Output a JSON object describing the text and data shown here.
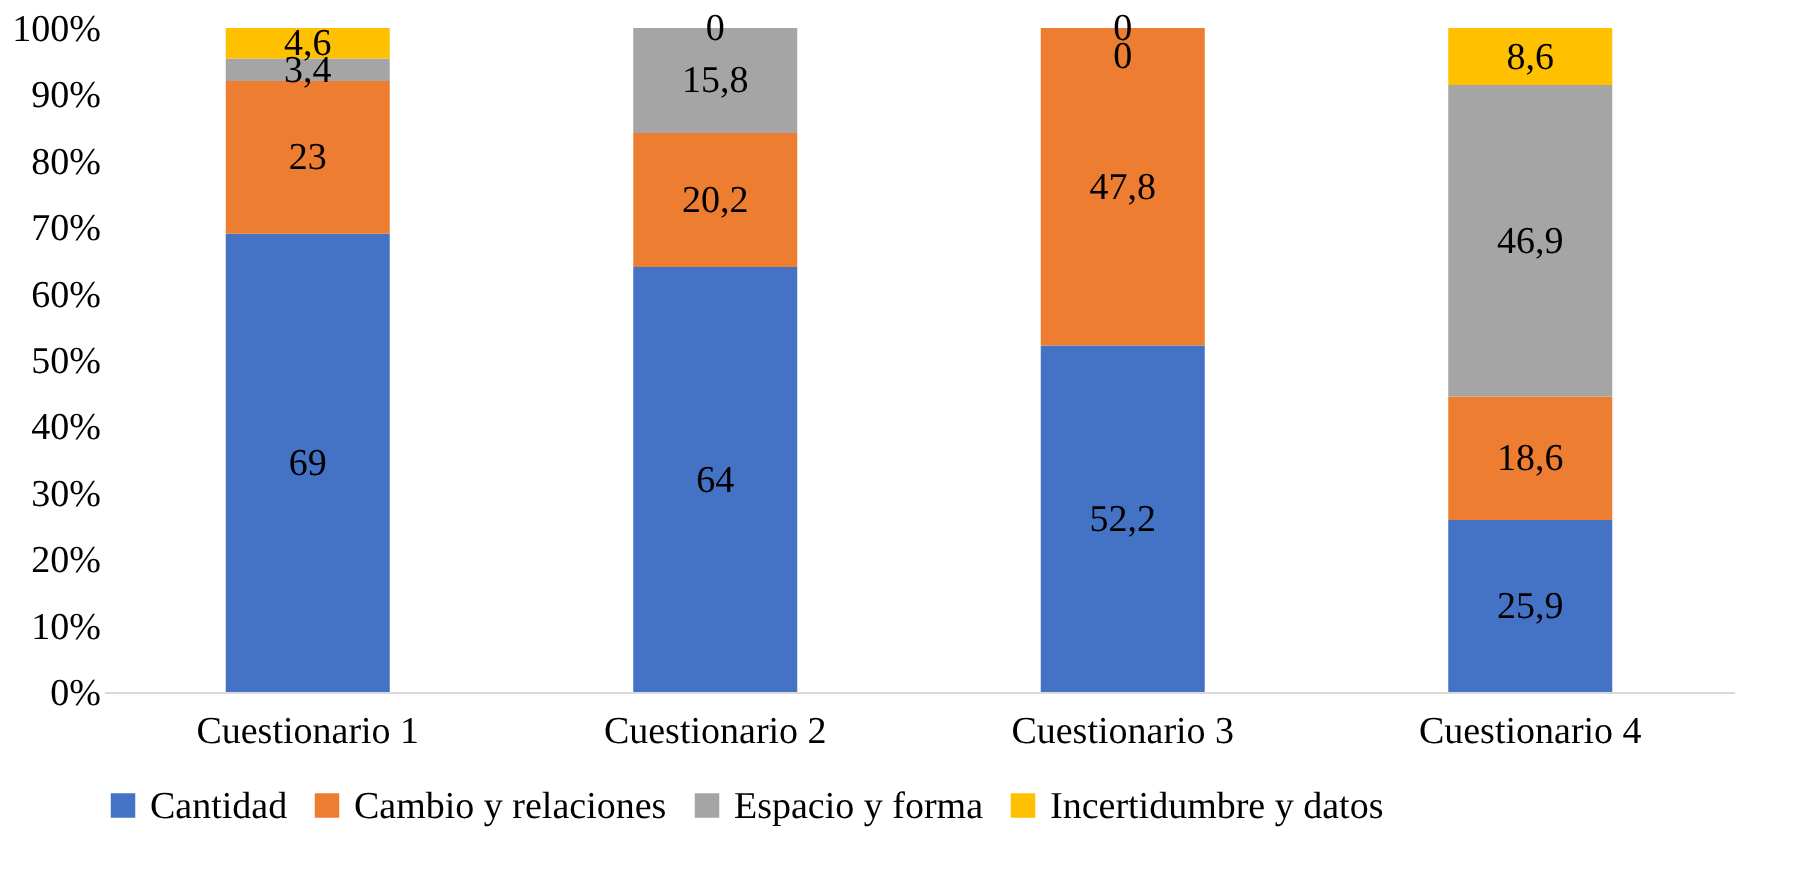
{
  "chart_data": {
    "type": "bar",
    "stacked": true,
    "categories": [
      "Cuestionario 1",
      "Cuestionario 2",
      "Cuestionario 3",
      "Cuestionario 4"
    ],
    "series": [
      {
        "name": "Cantidad",
        "color": "#4472c4",
        "values": [
          69,
          64,
          52.2,
          25.9
        ],
        "value_labels": [
          "69",
          "64",
          "52,2",
          "25,9"
        ]
      },
      {
        "name": "Cambio y relaciones",
        "color": "#ed7d31",
        "values": [
          23,
          20.2,
          47.8,
          18.6
        ],
        "value_labels": [
          "23",
          "20,2",
          "47,8",
          "18,6"
        ]
      },
      {
        "name": "Espacio y forma",
        "color": "#a5a5a5",
        "values": [
          3.4,
          15.8,
          0,
          46.9
        ],
        "value_labels": [
          "3,4",
          "15,8",
          "0",
          "46,9"
        ]
      },
      {
        "name": "Incertidumbre y datos",
        "color": "#ffc000",
        "values": [
          4.6,
          0,
          0,
          8.6
        ],
        "value_labels": [
          "4,6",
          "0",
          "0",
          "8,6"
        ]
      }
    ],
    "ylim": [
      0,
      100
    ],
    "yticks": [
      {
        "value": 0,
        "label": "0%"
      },
      {
        "value": 10,
        "label": "10%"
      },
      {
        "value": 20,
        "label": "20%"
      },
      {
        "value": 30,
        "label": "30%"
      },
      {
        "value": 40,
        "label": "40%"
      },
      {
        "value": 50,
        "label": "50%"
      },
      {
        "value": 60,
        "label": "60%"
      },
      {
        "value": 70,
        "label": "70%"
      },
      {
        "value": 80,
        "label": "80%"
      },
      {
        "value": 90,
        "label": "90%"
      },
      {
        "value": 100,
        "label": "100%"
      }
    ],
    "grid": false,
    "legend": "bottom"
  }
}
